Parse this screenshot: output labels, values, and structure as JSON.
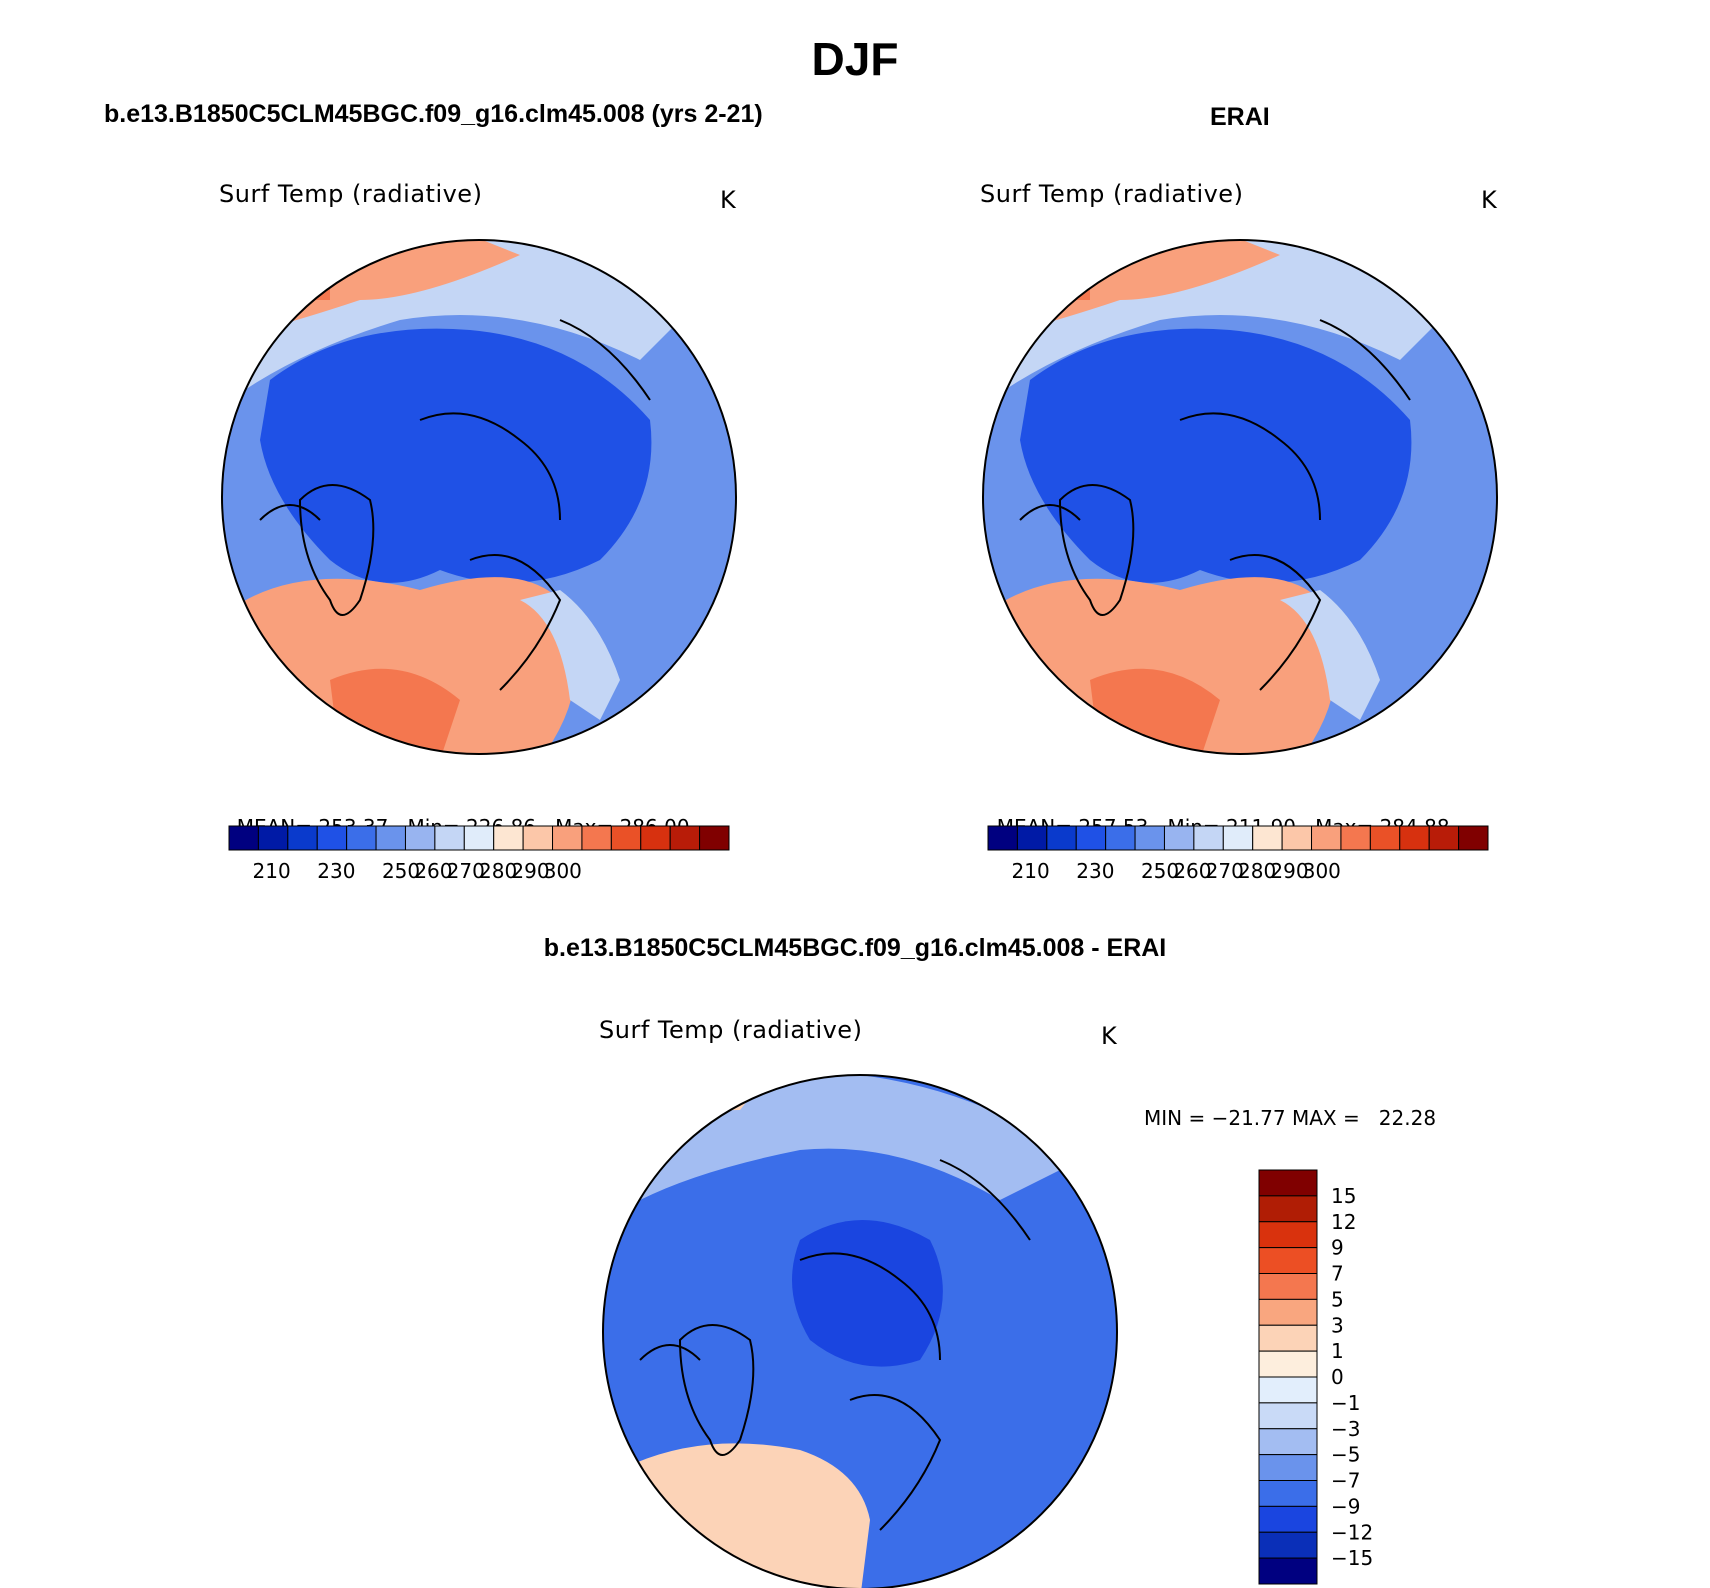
{
  "main_title": "DJF",
  "panels": {
    "model": {
      "title": "b.e13.B1850C5CLM45BGC.f09_g16.clm45.008 (yrs 2-21)",
      "variable": "Surf Temp (radiative)",
      "units": "K",
      "stats": {
        "mean_label": "MEAN=",
        "mean": "253.37",
        "min_label": "Min=",
        "min": "226.86",
        "max_label": "Max=",
        "max": "286.00"
      }
    },
    "obs": {
      "title": "ERAI",
      "variable": "Surf Temp (radiative)",
      "units": "K",
      "stats": {
        "mean_label": "MEAN=",
        "mean": "257.53",
        "min_label": "Min=",
        "min": "211.90",
        "max_label": "Max=",
        "max": "284.88"
      }
    },
    "diff": {
      "title": "b.e13.B1850C5CLM45BGC.f09_g16.clm45.008 - ERAI",
      "variable": "Surf Temp (radiative)",
      "units": "K",
      "minmax": "MIN = −21.77 MAX =   22.28"
    }
  },
  "colors": {
    "abs_scale": [
      "#000080",
      "#001aa6",
      "#0a3acc",
      "#1f51e6",
      "#3b6ee9",
      "#6a93ec",
      "#98b4f0",
      "#c4d6f5",
      "#e0ecfa",
      "#fde6d2",
      "#fcc7a9",
      "#f9a07c",
      "#f4774f",
      "#ea5127",
      "#d7310f",
      "#b81c08",
      "#800000"
    ],
    "diff_scale": [
      "#000080",
      "#0a2fb8",
      "#1a45e0",
      "#3b6ee9",
      "#6a93ec",
      "#a3bdf2",
      "#c9daf7",
      "#e2eefc",
      "#fdeedd",
      "#fcd3b7",
      "#f9a67f",
      "#f4774f",
      "#ec4f24",
      "#d9320d",
      "#b01d05",
      "#800000"
    ],
    "map": {
      "cold_core": "#1f51e6",
      "cold": "#3b6ee9",
      "cool": "#6a93ec",
      "pale": "#c4d6f5",
      "warm": "#f9a07c",
      "hot": "#f4774f",
      "diff_neg_strong": "#1a45e0",
      "diff_neg": "#3b6ee9",
      "diff_neg_weak": "#a3bdf2",
      "diff_pos": "#fcd3b7"
    }
  },
  "chart_data": [
    {
      "type": "heatmap",
      "title": "b.e13.B1850C5CLM45BGC.f09_g16.clm45.008 (yrs 2-21)",
      "variable": "Surf Temp (radiative)",
      "units": "K",
      "projection": "north polar stereographic",
      "mean": 253.37,
      "min": 226.86,
      "max": 286.0,
      "colorbar_levels": [
        210,
        220,
        230,
        240,
        250,
        255,
        260,
        265,
        270,
        275,
        280,
        285,
        290,
        295,
        300,
        305
      ],
      "colorbar_tick_labels": [
        "210",
        "230",
        "250",
        "260",
        "270",
        "280",
        "290",
        "300"
      ]
    },
    {
      "type": "heatmap",
      "title": "ERAI",
      "variable": "Surf Temp (radiative)",
      "units": "K",
      "projection": "north polar stereographic",
      "mean": 257.53,
      "min": 211.9,
      "max": 284.88,
      "colorbar_levels": [
        210,
        220,
        230,
        240,
        250,
        255,
        260,
        265,
        270,
        275,
        280,
        285,
        290,
        295,
        300,
        305
      ],
      "colorbar_tick_labels": [
        "210",
        "230",
        "250",
        "260",
        "270",
        "280",
        "290",
        "300"
      ]
    },
    {
      "type": "heatmap",
      "title": "b.e13.B1850C5CLM45BGC.f09_g16.clm45.008 - ERAI",
      "variable": "Surf Temp (radiative)",
      "units": "K",
      "projection": "north polar stereographic",
      "min": -21.77,
      "max": 22.28,
      "colorbar_tick_labels": [
        "15",
        "12",
        "9",
        "7",
        "5",
        "3",
        "1",
        "0",
        "−1",
        "−3",
        "−5",
        "−7",
        "−9",
        "−12",
        "−15"
      ]
    }
  ]
}
